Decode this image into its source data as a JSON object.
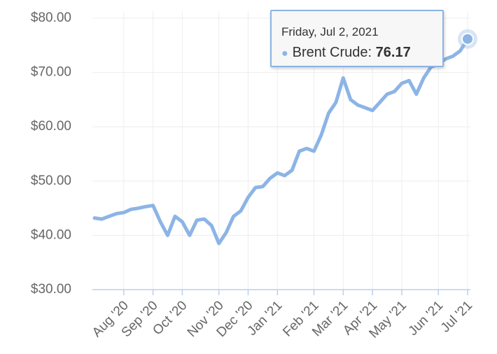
{
  "chart_data": {
    "type": "line",
    "categories": [
      null,
      null,
      null,
      null,
      "Aug '20",
      null,
      null,
      null,
      "Sep '20",
      null,
      null,
      null,
      "Oct '20",
      null,
      null,
      null,
      null,
      "Nov '20",
      null,
      null,
      null,
      "Dec '20",
      null,
      null,
      null,
      "Jan '21",
      null,
      null,
      null,
      null,
      "Feb '21",
      null,
      null,
      null,
      "Mar '21",
      null,
      null,
      null,
      "Apr '21",
      null,
      null,
      null,
      "May '21",
      null,
      null,
      null,
      null,
      "Jun '21",
      null,
      null,
      null,
      "Jul '21"
    ],
    "series": [
      {
        "name": "Brent Crude",
        "color": "#8cb4e6",
        "values": [
          43.2,
          43.0,
          43.5,
          44.0,
          44.2,
          44.8,
          45.0,
          45.3,
          45.5,
          42.5,
          40.0,
          43.5,
          42.5,
          40.0,
          42.8,
          43.0,
          41.8,
          38.5,
          40.5,
          43.5,
          44.5,
          47.0,
          48.8,
          49.0,
          50.5,
          51.5,
          51.0,
          52.0,
          55.5,
          56.0,
          55.5,
          58.5,
          62.5,
          64.5,
          69.0,
          65.0,
          64.0,
          63.5,
          63.0,
          64.5,
          66.0,
          66.5,
          68.0,
          68.5,
          66.0,
          69.0,
          71.0,
          71.5,
          72.5,
          73.0,
          74.0,
          76.17
        ]
      }
    ],
    "ylim": [
      30,
      80
    ],
    "yticks": [
      {
        "value": 30,
        "label": "$30.00"
      },
      {
        "value": 40,
        "label": "$40.00"
      },
      {
        "value": 50,
        "label": "$50.00"
      },
      {
        "value": 60,
        "label": "$60.00"
      },
      {
        "value": 70,
        "label": "$70.00"
      },
      {
        "value": 80,
        "label": "$80.00"
      }
    ],
    "grid": true,
    "tooltip": {
      "date": "Friday, Jul 2, 2021"
    }
  }
}
